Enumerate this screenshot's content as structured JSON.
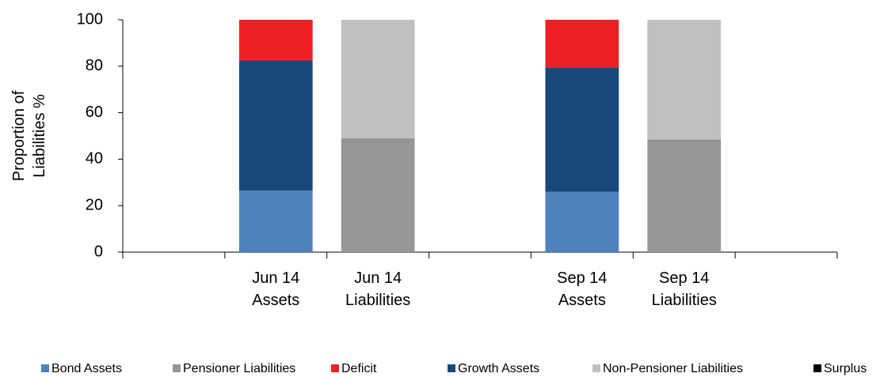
{
  "chart_data": {
    "type": "stacked_bar",
    "y_label": "Proportion of\nLiabilities %",
    "categories": [
      null,
      "Jun 14\nAssets",
      "Jun 14\nLiabilities",
      null,
      "Sep 14\nAssets",
      "Sep 14\nLiabilities",
      null
    ],
    "series": [
      {
        "name": "Bond Assets",
        "color": "#4f81bd",
        "values": [
          null,
          26.5,
          null,
          null,
          26,
          null,
          null
        ]
      },
      {
        "name": "Growth Assets",
        "color": "#17487a",
        "values": [
          null,
          56,
          null,
          null,
          53.5,
          null,
          null
        ]
      },
      {
        "name": "Pensioner Liabilities",
        "color": "#969696",
        "values": [
          null,
          null,
          49,
          null,
          null,
          48.5,
          null
        ]
      },
      {
        "name": "Non-Pensioner Liabilities",
        "color": "#c0c0c0",
        "values": [
          null,
          null,
          51,
          null,
          null,
          51.5,
          null
        ]
      },
      {
        "name": "Deficit",
        "color": "#ee2026",
        "values": [
          null,
          17.5,
          null,
          null,
          20.5,
          null,
          null
        ]
      },
      {
        "name": "Surplus",
        "color": "#000000",
        "values": [
          null,
          null,
          null,
          null,
          null,
          null,
          null
        ]
      }
    ],
    "ylim": [
      0,
      100
    ],
    "yticks": [
      0,
      20,
      40,
      60,
      80,
      100
    ],
    "grid": false,
    "legend": "bottom"
  }
}
